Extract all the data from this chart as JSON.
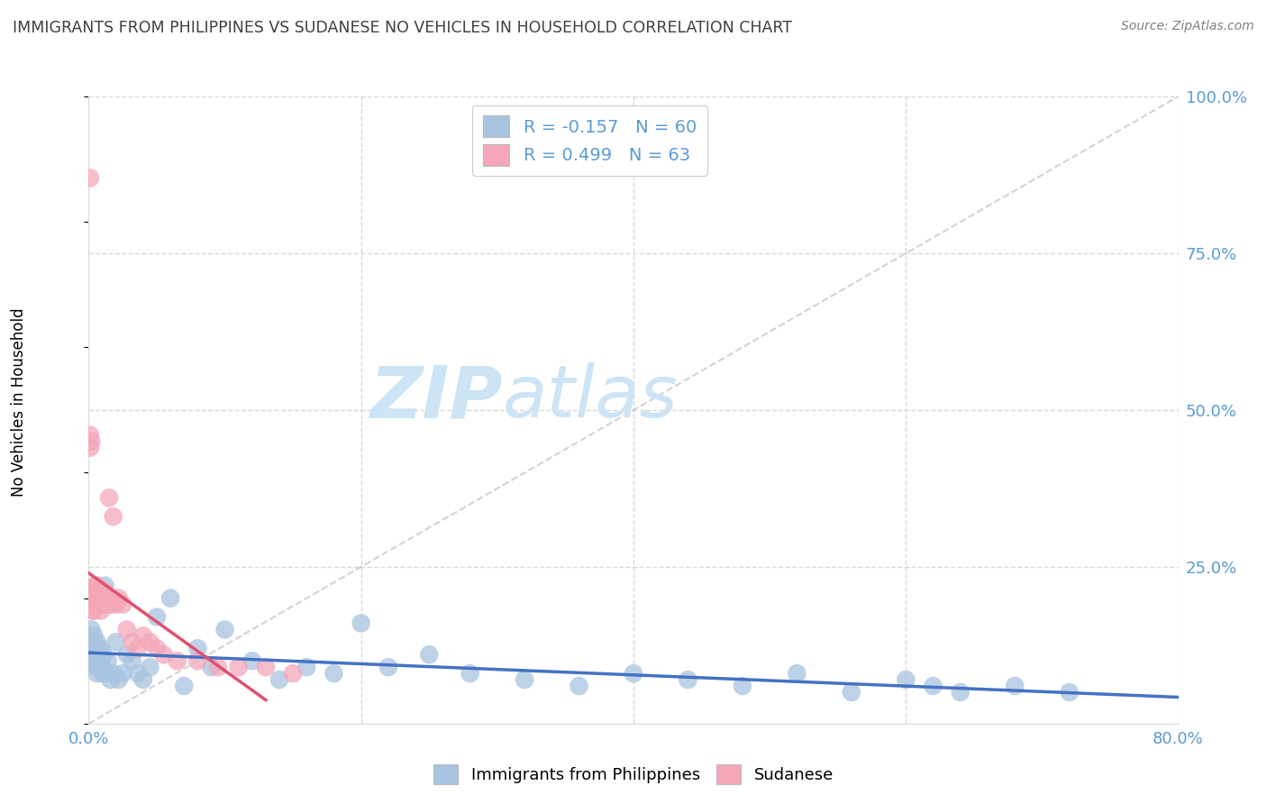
{
  "title": "IMMIGRANTS FROM PHILIPPINES VS SUDANESE NO VEHICLES IN HOUSEHOLD CORRELATION CHART",
  "source": "Source: ZipAtlas.com",
  "ylabel": "No Vehicles in Household",
  "xlim": [
    0.0,
    0.8
  ],
  "ylim": [
    0.0,
    1.0
  ],
  "xtick_positions": [
    0.0,
    0.8
  ],
  "xticklabels": [
    "0.0%",
    "80.0%"
  ],
  "yticks_right": [
    0.0,
    0.25,
    0.5,
    0.75,
    1.0
  ],
  "yticklabels_right": [
    "",
    "25.0%",
    "50.0%",
    "75.0%",
    "100.0%"
  ],
  "blue_color": "#a8c4e0",
  "pink_color": "#f4a7b9",
  "blue_line_color": "#4472c4",
  "pink_line_color": "#e05070",
  "dashed_line_color": "#c8c8c8",
  "legend_blue_label": "R = -0.157   N = 60",
  "legend_pink_label": "R = 0.499   N = 63",
  "legend_blue_face": "#a8c4e0",
  "legend_pink_face": "#f4a7b9",
  "watermark_zip": "ZIP",
  "watermark_atlas": "atlas",
  "watermark_color_zip": "#cce4f5",
  "watermark_color_atlas": "#cce4f5",
  "background_color": "#ffffff",
  "grid_color": "#d8d8d8",
  "axis_label_color": "#5b9bd5",
  "title_color": "#404040",
  "source_color": "#808080",
  "blue_scatter_x": [
    0.001,
    0.002,
    0.003,
    0.003,
    0.004,
    0.004,
    0.005,
    0.005,
    0.005,
    0.006,
    0.006,
    0.007,
    0.007,
    0.008,
    0.008,
    0.009,
    0.009,
    0.01,
    0.01,
    0.011,
    0.012,
    0.013,
    0.014,
    0.015,
    0.016,
    0.018,
    0.02,
    0.022,
    0.025,
    0.028,
    0.032,
    0.036,
    0.04,
    0.045,
    0.05,
    0.06,
    0.07,
    0.08,
    0.09,
    0.1,
    0.12,
    0.14,
    0.16,
    0.18,
    0.2,
    0.22,
    0.25,
    0.28,
    0.32,
    0.36,
    0.4,
    0.44,
    0.48,
    0.52,
    0.56,
    0.6,
    0.62,
    0.64,
    0.68,
    0.72
  ],
  "blue_scatter_y": [
    0.12,
    0.15,
    0.13,
    0.11,
    0.14,
    0.1,
    0.12,
    0.09,
    0.11,
    0.08,
    0.13,
    0.1,
    0.12,
    0.09,
    0.11,
    0.1,
    0.12,
    0.08,
    0.09,
    0.11,
    0.22,
    0.08,
    0.1,
    0.19,
    0.07,
    0.08,
    0.13,
    0.07,
    0.08,
    0.11,
    0.1,
    0.08,
    0.07,
    0.09,
    0.17,
    0.2,
    0.06,
    0.12,
    0.09,
    0.15,
    0.1,
    0.07,
    0.09,
    0.08,
    0.16,
    0.09,
    0.11,
    0.08,
    0.07,
    0.06,
    0.08,
    0.07,
    0.06,
    0.08,
    0.05,
    0.07,
    0.06,
    0.05,
    0.06,
    0.05
  ],
  "pink_scatter_x": [
    0.001,
    0.001,
    0.001,
    0.002,
    0.002,
    0.002,
    0.003,
    0.003,
    0.003,
    0.003,
    0.004,
    0.004,
    0.004,
    0.004,
    0.005,
    0.005,
    0.005,
    0.006,
    0.006,
    0.006,
    0.006,
    0.007,
    0.007,
    0.007,
    0.008,
    0.008,
    0.008,
    0.009,
    0.009,
    0.009,
    0.01,
    0.01,
    0.01,
    0.011,
    0.011,
    0.012,
    0.012,
    0.013,
    0.013,
    0.014,
    0.015,
    0.016,
    0.018,
    0.02,
    0.022,
    0.025,
    0.028,
    0.032,
    0.036,
    0.04,
    0.045,
    0.05,
    0.055,
    0.065,
    0.08,
    0.095,
    0.11,
    0.13,
    0.15,
    0.002,
    0.001,
    0.001,
    0.001
  ],
  "pink_scatter_y": [
    0.19,
    0.2,
    0.21,
    0.2,
    0.21,
    0.19,
    0.2,
    0.18,
    0.21,
    0.19,
    0.22,
    0.2,
    0.18,
    0.21,
    0.19,
    0.21,
    0.2,
    0.2,
    0.19,
    0.21,
    0.22,
    0.19,
    0.2,
    0.21,
    0.2,
    0.19,
    0.21,
    0.2,
    0.18,
    0.19,
    0.21,
    0.2,
    0.19,
    0.2,
    0.19,
    0.21,
    0.2,
    0.2,
    0.19,
    0.2,
    0.36,
    0.19,
    0.33,
    0.19,
    0.2,
    0.19,
    0.15,
    0.13,
    0.12,
    0.14,
    0.13,
    0.12,
    0.11,
    0.1,
    0.1,
    0.09,
    0.09,
    0.09,
    0.08,
    0.45,
    0.87,
    0.46,
    0.44
  ]
}
